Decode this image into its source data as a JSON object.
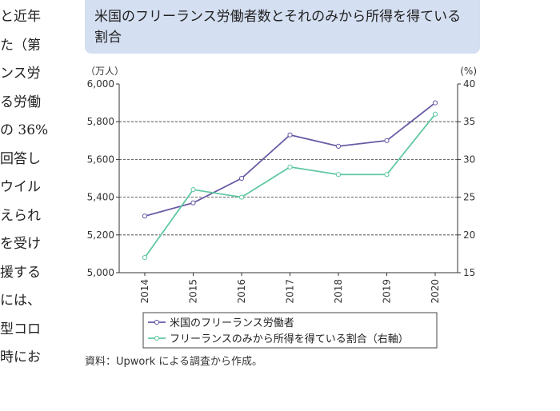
{
  "side_text": [
    "と近年",
    "た（第",
    "ンス労",
    "る労働",
    "の 36%",
    "回答し",
    "ウイル",
    "えられ",
    "を受け",
    "援する",
    "には、",
    "型コロ",
    "時にお"
  ],
  "title": "米国のフリーランス労働者数とそれのみから所得を得ている割合",
  "source": "資料：Upwork による調査から作成。",
  "colors": {
    "series1": "#6a5aa6",
    "series2": "#5fc8a0",
    "title_bg": "#d4dff1",
    "axis": "#333333",
    "grid": "#333333"
  },
  "chart_data": {
    "type": "line",
    "x": [
      "2014",
      "2015",
      "2016",
      "2017",
      "2018",
      "2019",
      "2020"
    ],
    "y_left_unit": "（万人）",
    "y_right_unit": "(%)",
    "y_left_ticks": [
      "6,000",
      "5,800",
      "5,600",
      "5,400",
      "5,200",
      "5,000"
    ],
    "y_right_ticks": [
      "40",
      "35",
      "30",
      "25",
      "20",
      "15"
    ],
    "ylim_left": [
      5000,
      6000
    ],
    "ylim_right": [
      15,
      40
    ],
    "grid": "dashed horizontal",
    "legend_position": "bottom",
    "series": [
      {
        "name": "米国のフリーランス労働者",
        "axis": "left",
        "values": [
          5300,
          5370,
          5500,
          5730,
          5670,
          5700,
          5900
        ]
      },
      {
        "name": "フリーランスのみから所得を得ている割合（右軸）",
        "axis": "right",
        "values": [
          17,
          26,
          25,
          29,
          28,
          28,
          36
        ]
      }
    ]
  }
}
